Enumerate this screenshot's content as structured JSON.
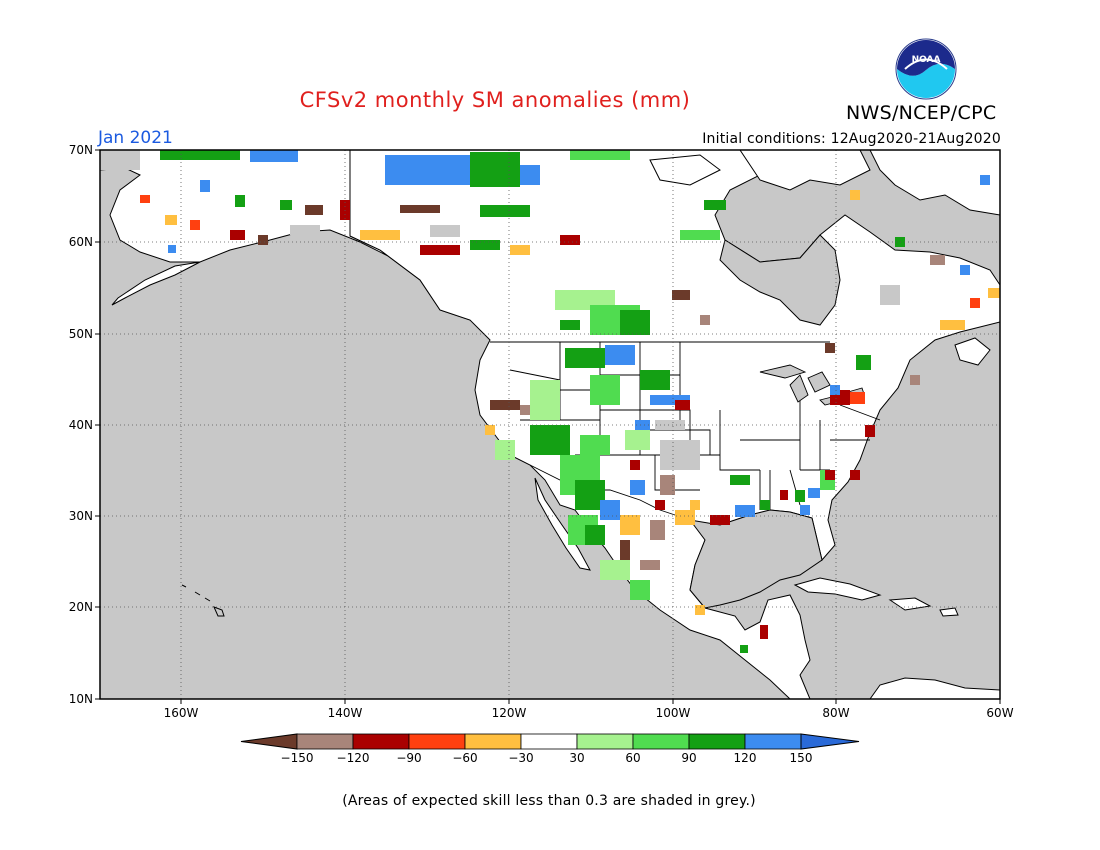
{
  "title": "CFSv2 monthly SM anomalies (mm)",
  "org": "NWS/NCEP/CPC",
  "month": "Jan 2021",
  "initial_conditions": "Initial conditions: 12Aug2020-21Aug2020",
  "logo_text": "NOAA",
  "lat_labels": [
    "70N",
    "60N",
    "50N",
    "40N",
    "30N",
    "20N",
    "10N"
  ],
  "lon_labels": [
    "160W",
    "140W",
    "120W",
    "100W",
    "80W",
    "60W"
  ],
  "colorbar": {
    "labels": [
      "-150",
      "-120",
      "-90",
      "-60",
      "-30",
      "30",
      "60",
      "90",
      "120",
      "150"
    ],
    "colors": [
      "#6b3a2a",
      "#a8857a",
      "#aa0000",
      "#ff4010",
      "#ffbf40",
      "#ffffff",
      "#a6f28f",
      "#50dc50",
      "#14a014",
      "#3c8cf0",
      "#2a6ad8"
    ]
  },
  "footnote": "(Areas of expected skill less than 0.3 are shaded in grey.)",
  "colors": {
    "ocean_grey": "#c8c8c8",
    "title_red": "#e0201e",
    "month_blue": "#1b5ae0"
  }
}
